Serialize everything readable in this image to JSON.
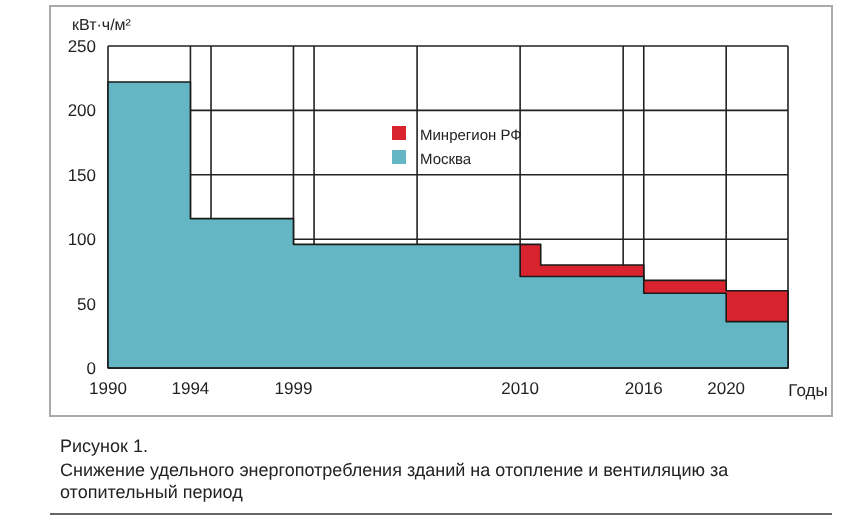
{
  "chart_data": {
    "type": "area",
    "ylabel": "кВт·ч/м²",
    "xlabel": "Годы",
    "annotations": [
      "Рисунок 1.",
      "Снижение удельного энергопотребления зданий на отопление и вентиляцию за отопительный период"
    ],
    "series": [
      {
        "name": "Минрегион РФ",
        "color": "#d9232e",
        "x": [
          2010,
          2011,
          2011,
          2016,
          2016,
          2020,
          2020,
          2023
        ],
        "values": [
          96,
          96,
          80,
          80,
          68,
          68,
          60,
          60
        ]
      },
      {
        "name": "Москва",
        "color": "#65b6c4",
        "x": [
          1990,
          1994,
          1994,
          1999,
          1999,
          2010,
          2010,
          2016,
          2016,
          2020,
          2020,
          2023
        ],
        "values": [
          222,
          222,
          116,
          116,
          96,
          96,
          71,
          71,
          58,
          58,
          36,
          36
        ]
      }
    ],
    "xlim": [
      1990,
      2023
    ],
    "xticks": [
      1990,
      1994,
      {
        "value": 1995,
        "label": null
      },
      1999,
      {
        "value": 2000,
        "label": null
      },
      {
        "value": 2005,
        "label": null
      },
      2010,
      {
        "value": 2015,
        "label": null
      },
      2016,
      2020
    ],
    "ylim": [
      0,
      250
    ],
    "yticks": [
      0,
      50,
      100,
      150,
      200,
      250
    ],
    "grid": true,
    "legend": "top right"
  }
}
